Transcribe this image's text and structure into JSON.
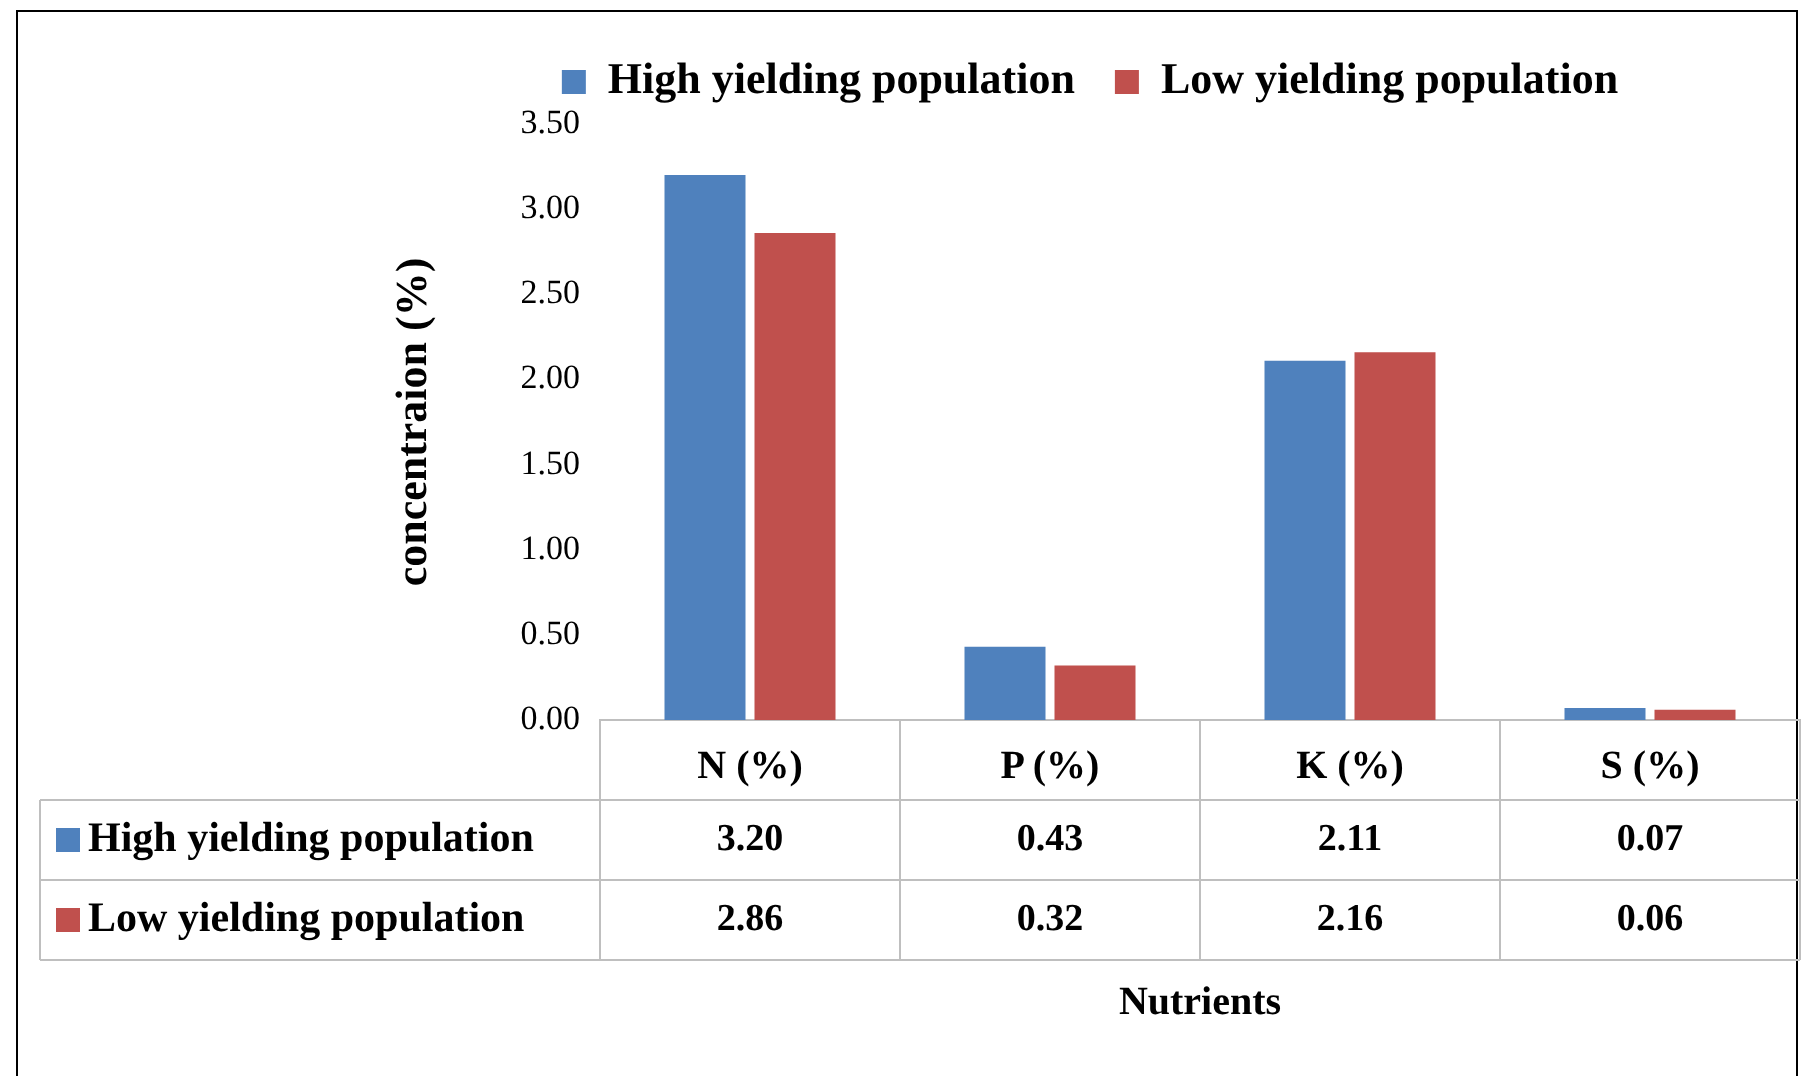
{
  "chart_data": {
    "type": "bar",
    "xlabel": "Nutrients",
    "ylabel": "concentraion (%)",
    "categories": [
      "N (%)",
      "P (%)",
      "K (%)",
      "S (%)"
    ],
    "series": [
      {
        "name": "High yielding population",
        "color": "#4f81bd",
        "values": [
          3.2,
          0.43,
          2.11,
          0.07
        ],
        "value_labels": [
          "3.20",
          "0.43",
          "2.11",
          "0.07"
        ]
      },
      {
        "name": "Low yielding population",
        "color": "#c0504d",
        "values": [
          2.86,
          0.32,
          2.16,
          0.06
        ],
        "value_labels": [
          "2.86",
          "0.32",
          "2.16",
          "0.06"
        ]
      }
    ],
    "ylim": [
      0,
      3.5
    ],
    "yticks": [
      {
        "value": 0,
        "label": "0.00"
      },
      {
        "value": 0.5,
        "label": "0.50"
      },
      {
        "value": 1,
        "label": "1.00"
      },
      {
        "value": 1.5,
        "label": "1.50"
      },
      {
        "value": 2,
        "label": "2.00"
      },
      {
        "value": 2.5,
        "label": "2.50"
      },
      {
        "value": 3,
        "label": "3.00"
      },
      {
        "value": 3.5,
        "label": "3.50"
      }
    ],
    "grid": false,
    "legend": "top"
  }
}
